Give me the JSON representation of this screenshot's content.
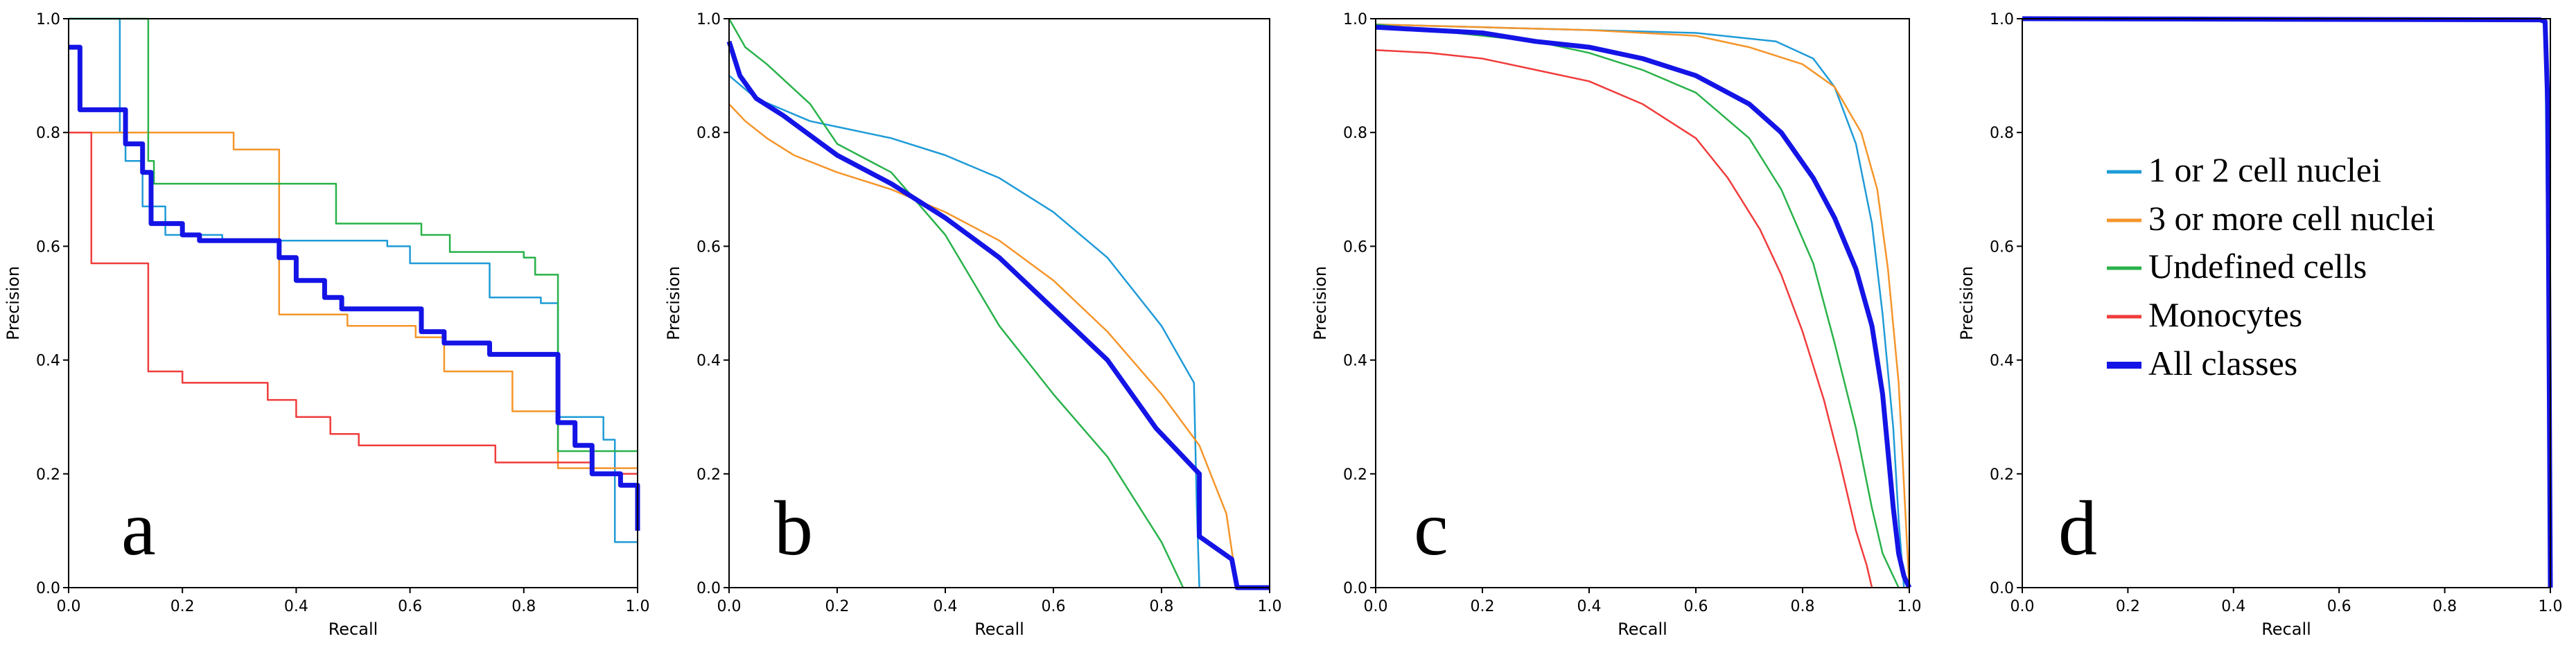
{
  "chart_data": [
    {
      "type": "line",
      "panel": "a",
      "xlabel": "Recall",
      "ylabel": "Precision",
      "xlim": [
        0,
        1
      ],
      "ylim": [
        0,
        1
      ],
      "xticks": [
        "0.0",
        "0.2",
        "0.4",
        "0.6",
        "0.8",
        "1.0"
      ],
      "yticks": [
        "0.0",
        "0.2",
        "0.4",
        "0.6",
        "0.8",
        "1.0"
      ],
      "grid": false,
      "series": [
        {
          "name": "1 or 2 cell nuclei",
          "color": "#1f9bd7",
          "x": [
            0.0,
            0.09,
            0.09,
            0.1,
            0.1,
            0.13,
            0.13,
            0.17,
            0.17,
            0.27,
            0.27,
            0.56,
            0.56,
            0.6,
            0.6,
            0.74,
            0.74,
            0.83,
            0.83,
            0.86,
            0.86,
            0.94,
            0.94,
            0.96,
            0.96,
            1.0
          ],
          "y": [
            1.0,
            1.0,
            0.8,
            0.8,
            0.75,
            0.75,
            0.67,
            0.67,
            0.62,
            0.62,
            0.61,
            0.61,
            0.6,
            0.6,
            0.57,
            0.57,
            0.51,
            0.51,
            0.5,
            0.5,
            0.3,
            0.3,
            0.26,
            0.26,
            0.08,
            0.08
          ]
        },
        {
          "name": "3 or more cell nuclei",
          "color": "#f5952a",
          "x": [
            0.0,
            0.07,
            0.07,
            0.29,
            0.29,
            0.37,
            0.37,
            0.49,
            0.49,
            0.61,
            0.61,
            0.66,
            0.66,
            0.78,
            0.78,
            0.86,
            0.86,
            1.0
          ],
          "y": [
            0.8,
            0.8,
            0.8,
            0.8,
            0.77,
            0.77,
            0.48,
            0.48,
            0.46,
            0.46,
            0.44,
            0.44,
            0.38,
            0.38,
            0.31,
            0.31,
            0.21,
            0.21
          ]
        },
        {
          "name": "Undefined cells",
          "color": "#29b24a",
          "x": [
            0.0,
            0.14,
            0.14,
            0.15,
            0.15,
            0.47,
            0.47,
            0.62,
            0.62,
            0.67,
            0.67,
            0.8,
            0.8,
            0.82,
            0.82,
            0.86,
            0.86,
            1.0
          ],
          "y": [
            1.0,
            1.0,
            0.75,
            0.75,
            0.71,
            0.71,
            0.64,
            0.64,
            0.62,
            0.62,
            0.59,
            0.59,
            0.58,
            0.58,
            0.55,
            0.55,
            0.24,
            0.24
          ]
        },
        {
          "name": "Monocytes",
          "color": "#f03c3c",
          "x": [
            0.0,
            0.04,
            0.04,
            0.14,
            0.14,
            0.2,
            0.2,
            0.35,
            0.35,
            0.4,
            0.4,
            0.46,
            0.46,
            0.51,
            0.51,
            0.75,
            0.75,
            0.92,
            0.92,
            1.0
          ],
          "y": [
            0.8,
            0.8,
            0.57,
            0.57,
            0.38,
            0.38,
            0.36,
            0.36,
            0.33,
            0.33,
            0.3,
            0.3,
            0.27,
            0.27,
            0.25,
            0.25,
            0.22,
            0.22,
            0.2,
            0.2
          ]
        },
        {
          "name": "All classes",
          "color": "#1414e6",
          "x": [
            0.0,
            0.02,
            0.02,
            0.1,
            0.1,
            0.13,
            0.13,
            0.145,
            0.145,
            0.2,
            0.2,
            0.23,
            0.23,
            0.37,
            0.37,
            0.4,
            0.4,
            0.45,
            0.45,
            0.48,
            0.48,
            0.62,
            0.62,
            0.66,
            0.66,
            0.74,
            0.74,
            0.86,
            0.86,
            0.89,
            0.89,
            0.92,
            0.92,
            0.97,
            0.97,
            1.0,
            1.0
          ],
          "y": [
            0.95,
            0.95,
            0.84,
            0.84,
            0.78,
            0.78,
            0.73,
            0.73,
            0.64,
            0.64,
            0.62,
            0.62,
            0.61,
            0.61,
            0.58,
            0.58,
            0.54,
            0.54,
            0.51,
            0.51,
            0.49,
            0.49,
            0.45,
            0.45,
            0.43,
            0.43,
            0.41,
            0.41,
            0.29,
            0.29,
            0.25,
            0.25,
            0.2,
            0.2,
            0.18,
            0.18,
            0.1
          ]
        }
      ]
    },
    {
      "type": "line",
      "panel": "b",
      "xlabel": "Recall",
      "ylabel": "Precision",
      "xlim": [
        0,
        1
      ],
      "ylim": [
        0,
        1
      ],
      "xticks": [
        "0.0",
        "0.2",
        "0.4",
        "0.6",
        "0.8",
        "1.0"
      ],
      "yticks": [
        "0.0",
        "0.2",
        "0.4",
        "0.6",
        "0.8",
        "1.0"
      ],
      "grid": false,
      "series": [
        {
          "name": "1 or 2 cell nuclei",
          "color": "#1f9bd7",
          "x": [
            0.0,
            0.05,
            0.1,
            0.15,
            0.2,
            0.3,
            0.4,
            0.5,
            0.6,
            0.7,
            0.8,
            0.86,
            0.865,
            0.87
          ],
          "y": [
            0.9,
            0.86,
            0.84,
            0.82,
            0.81,
            0.79,
            0.76,
            0.72,
            0.66,
            0.58,
            0.46,
            0.36,
            0.15,
            0.0
          ]
        },
        {
          "name": "3 or more cell nuclei",
          "color": "#f5952a",
          "x": [
            0.0,
            0.03,
            0.07,
            0.12,
            0.2,
            0.3,
            0.4,
            0.5,
            0.6,
            0.7,
            0.8,
            0.87,
            0.92,
            0.94
          ],
          "y": [
            0.85,
            0.82,
            0.79,
            0.76,
            0.73,
            0.7,
            0.66,
            0.61,
            0.54,
            0.45,
            0.34,
            0.25,
            0.13,
            0.0
          ]
        },
        {
          "name": "Undefined cells",
          "color": "#29b24a",
          "x": [
            0.0,
            0.03,
            0.07,
            0.15,
            0.2,
            0.3,
            0.4,
            0.5,
            0.6,
            0.7,
            0.8,
            0.84
          ],
          "y": [
            1.0,
            0.95,
            0.92,
            0.85,
            0.78,
            0.73,
            0.62,
            0.46,
            0.34,
            0.23,
            0.08,
            0.0
          ]
        },
        {
          "name": "All classes",
          "color": "#1414e6",
          "x": [
            0.0,
            0.02,
            0.05,
            0.1,
            0.2,
            0.3,
            0.4,
            0.5,
            0.6,
            0.7,
            0.79,
            0.87,
            0.87,
            0.93,
            0.94,
            1.0
          ],
          "y": [
            0.96,
            0.9,
            0.86,
            0.83,
            0.76,
            0.71,
            0.65,
            0.58,
            0.49,
            0.4,
            0.28,
            0.2,
            0.09,
            0.05,
            0.0,
            0.0
          ]
        }
      ]
    },
    {
      "type": "line",
      "panel": "c",
      "xlabel": "Recall",
      "ylabel": "Precision",
      "xlim": [
        0,
        1
      ],
      "ylim": [
        0,
        1
      ],
      "xticks": [
        "0.0",
        "0.2",
        "0.4",
        "0.6",
        "0.8",
        "1.0"
      ],
      "yticks": [
        "0.0",
        "0.2",
        "0.4",
        "0.6",
        "0.8",
        "1.0"
      ],
      "grid": false,
      "series": [
        {
          "name": "1 or 2 cell nuclei",
          "color": "#1f9bd7",
          "x": [
            0.0,
            0.2,
            0.4,
            0.6,
            0.75,
            0.82,
            0.86,
            0.9,
            0.93,
            0.95,
            0.97,
            0.98,
            0.99
          ],
          "y": [
            0.99,
            0.985,
            0.98,
            0.975,
            0.96,
            0.93,
            0.88,
            0.78,
            0.64,
            0.48,
            0.28,
            0.12,
            0.0
          ]
        },
        {
          "name": "3 or more cell nuclei",
          "color": "#f5952a",
          "x": [
            0.0,
            0.2,
            0.4,
            0.6,
            0.7,
            0.8,
            0.86,
            0.91,
            0.94,
            0.96,
            0.98,
            0.99,
            1.0
          ],
          "y": [
            0.99,
            0.985,
            0.98,
            0.97,
            0.95,
            0.92,
            0.88,
            0.8,
            0.7,
            0.56,
            0.36,
            0.18,
            0.0
          ]
        },
        {
          "name": "Undefined cells",
          "color": "#29b24a",
          "x": [
            0.0,
            0.2,
            0.3,
            0.4,
            0.5,
            0.6,
            0.7,
            0.76,
            0.82,
            0.86,
            0.9,
            0.93,
            0.95,
            0.97,
            0.98
          ],
          "y": [
            0.99,
            0.97,
            0.96,
            0.94,
            0.91,
            0.87,
            0.79,
            0.7,
            0.57,
            0.43,
            0.28,
            0.14,
            0.06,
            0.02,
            0.0
          ]
        },
        {
          "name": "Monocytes",
          "color": "#f03c3c",
          "x": [
            0.0,
            0.1,
            0.2,
            0.3,
            0.4,
            0.5,
            0.6,
            0.66,
            0.72,
            0.76,
            0.8,
            0.84,
            0.87,
            0.9,
            0.92,
            0.93
          ],
          "y": [
            0.945,
            0.94,
            0.93,
            0.91,
            0.89,
            0.85,
            0.79,
            0.72,
            0.63,
            0.55,
            0.45,
            0.33,
            0.22,
            0.1,
            0.04,
            0.0
          ]
        },
        {
          "name": "All classes",
          "color": "#1414e6",
          "x": [
            0.0,
            0.1,
            0.2,
            0.3,
            0.4,
            0.5,
            0.6,
            0.7,
            0.76,
            0.82,
            0.86,
            0.9,
            0.93,
            0.95,
            0.96,
            0.97,
            0.98,
            0.99,
            1.0
          ],
          "y": [
            0.985,
            0.98,
            0.975,
            0.96,
            0.95,
            0.93,
            0.9,
            0.85,
            0.8,
            0.72,
            0.65,
            0.56,
            0.46,
            0.34,
            0.24,
            0.14,
            0.06,
            0.02,
            0.0
          ]
        }
      ]
    },
    {
      "type": "line",
      "panel": "d",
      "xlabel": "Recall",
      "ylabel": "Precision",
      "xlim": [
        0,
        1
      ],
      "ylim": [
        0,
        1
      ],
      "xticks": [
        "0.0",
        "0.2",
        "0.4",
        "0.6",
        "0.8",
        "1.0"
      ],
      "yticks": [
        "0.0",
        "0.2",
        "0.4",
        "0.6",
        "0.8",
        "1.0"
      ],
      "grid": false,
      "series": [
        {
          "name": "Undefined cells",
          "color": "#29b24a",
          "x": [
            0.0,
            0.98,
            0.99,
            0.995,
            0.998,
            1.0
          ],
          "y": [
            1.0,
            0.998,
            0.99,
            0.6,
            0.2,
            0.0
          ]
        },
        {
          "name": "1 or 2 cell nuclei",
          "color": "#1f9bd7",
          "x": [
            0.0,
            0.98,
            0.99,
            0.995,
            1.0
          ],
          "y": [
            1.0,
            0.998,
            0.99,
            0.5,
            0.0
          ]
        },
        {
          "name": "All classes",
          "color": "#1414e6",
          "x": [
            0.0,
            0.98,
            0.99,
            0.995,
            1.0
          ],
          "y": [
            1.0,
            0.998,
            0.995,
            0.85,
            0.0
          ]
        }
      ]
    }
  ],
  "panel_letters": [
    "a",
    "b",
    "c",
    "d"
  ],
  "legend": {
    "placement": "right-middle of panel d",
    "items": [
      {
        "label": "1 or 2 cell nuclei",
        "color": "#1f9bd7"
      },
      {
        "label": "3 or more cell nuclei",
        "color": "#f5952a"
      },
      {
        "label": "Undefined cells",
        "color": "#29b24a"
      },
      {
        "label": "Monocytes",
        "color": "#f03c3c"
      },
      {
        "label": "All classes",
        "color": "#1414e6"
      }
    ]
  }
}
